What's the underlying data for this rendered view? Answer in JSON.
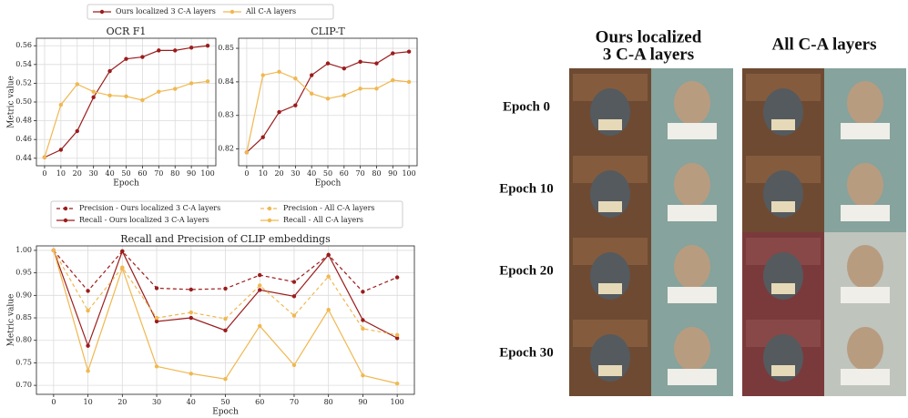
{
  "chart_data": [
    {
      "type": "line",
      "title": "OCR F1",
      "xlabel": "Epoch",
      "ylabel": "Metric value",
      "x": [
        0,
        10,
        20,
        30,
        40,
        50,
        60,
        70,
        80,
        90,
        100
      ],
      "xlim": [
        -5,
        105
      ],
      "xticks": [
        0,
        10,
        20,
        30,
        40,
        50,
        60,
        70,
        80,
        90,
        100
      ],
      "ylim": [
        0.432,
        0.568
      ],
      "yticks": [
        0.44,
        0.46,
        0.48,
        {
          "value": 0.5,
          "label": "0.50"
        },
        0.52,
        0.54,
        0.56
      ],
      "grid": true,
      "legend": true,
      "series": [
        {
          "name": "Ours localized 3 C-A layers",
          "color": "#9b1c1c",
          "dashed": false,
          "values": [
            0.441,
            0.449,
            0.469,
            0.505,
            0.533,
            0.546,
            0.548,
            0.555,
            0.555,
            0.558,
            0.56
          ]
        },
        {
          "name": "All C-A layers",
          "color": "#f0b850",
          "dashed": false,
          "values": [
            0.441,
            0.497,
            0.519,
            0.511,
            0.507,
            0.506,
            0.502,
            0.511,
            0.514,
            0.52,
            0.522
          ]
        }
      ]
    },
    {
      "type": "line",
      "title": "CLIP-T",
      "xlabel": "Epoch",
      "x": [
        0,
        10,
        20,
        30,
        40,
        50,
        60,
        70,
        80,
        90,
        100
      ],
      "xlim": [
        -5,
        105
      ],
      "xticks": [
        0,
        10,
        20,
        30,
        40,
        50,
        60,
        70,
        80,
        90,
        100
      ],
      "ylim": [
        0.815,
        0.853
      ],
      "yticks": [
        0.82,
        0.83,
        0.84,
        0.85
      ],
      "grid": true,
      "legend": false,
      "series": [
        {
          "name": "Ours localized 3 C-A layers",
          "color": "#9b1c1c",
          "dashed": false,
          "values": [
            0.819,
            0.8235,
            0.831,
            0.833,
            0.842,
            0.8455,
            0.844,
            0.846,
            0.8455,
            0.8485,
            0.849
          ]
        },
        {
          "name": "All C-A layers",
          "color": "#f0b850",
          "dashed": false,
          "values": [
            0.819,
            0.842,
            0.843,
            0.841,
            0.8365,
            0.835,
            0.836,
            0.838,
            0.838,
            0.8405,
            0.84
          ]
        }
      ]
    },
    {
      "type": "line",
      "title": "Recall and Precision of CLIP embeddings",
      "xlabel": "Epoch",
      "ylabel": "Metric value",
      "x": [
        0,
        10,
        20,
        30,
        40,
        50,
        60,
        70,
        80,
        90,
        100
      ],
      "xlim": [
        -5,
        105
      ],
      "xticks": [
        0,
        10,
        20,
        30,
        40,
        50,
        60,
        70,
        80,
        90,
        100
      ],
      "ylim": [
        0.68,
        1.01
      ],
      "yticks": [
        {
          "value": 0.7,
          "label": "0.70"
        },
        0.75,
        {
          "value": 0.8,
          "label": "0.80"
        },
        0.85,
        {
          "value": 0.9,
          "label": "0.90"
        },
        0.95,
        {
          "value": 1,
          "label": "1.00"
        }
      ],
      "grid": true,
      "legend": true,
      "series": [
        {
          "name": "Precision - Ours localized 3 C-A layers",
          "color": "#9b1c1c",
          "dashed": true,
          "values": [
            1.0,
            0.91,
            0.998,
            0.916,
            0.913,
            0.915,
            0.945,
            0.93,
            0.99,
            0.908,
            0.94
          ]
        },
        {
          "name": "Recall - Ours localized 3 C-A layers",
          "color": "#9b1c1c",
          "dashed": false,
          "values": [
            1.0,
            0.788,
            0.998,
            0.842,
            0.85,
            0.822,
            0.912,
            0.898,
            0.99,
            0.845,
            0.805
          ]
        },
        {
          "name": "Precision - All C-A layers",
          "color": "#f0b850",
          "dashed": true,
          "values": [
            1.0,
            0.866,
            0.962,
            0.85,
            0.862,
            0.848,
            0.922,
            0.855,
            0.942,
            0.826,
            0.812
          ]
        },
        {
          "name": "Recall - All C-A layers",
          "color": "#f0b850",
          "dashed": false,
          "values": [
            1.0,
            0.732,
            0.96,
            0.742,
            0.726,
            0.714,
            0.832,
            0.745,
            0.868,
            0.722,
            0.704
          ]
        }
      ]
    }
  ],
  "image_grid": {
    "column_headers": [
      [
        "Ours localized",
        "3 C-A layers"
      ],
      [
        "All C-A layers"
      ]
    ],
    "row_labels": [
      "Epoch 0",
      "Epoch 10",
      "Epoch 20",
      "Epoch 30"
    ]
  }
}
